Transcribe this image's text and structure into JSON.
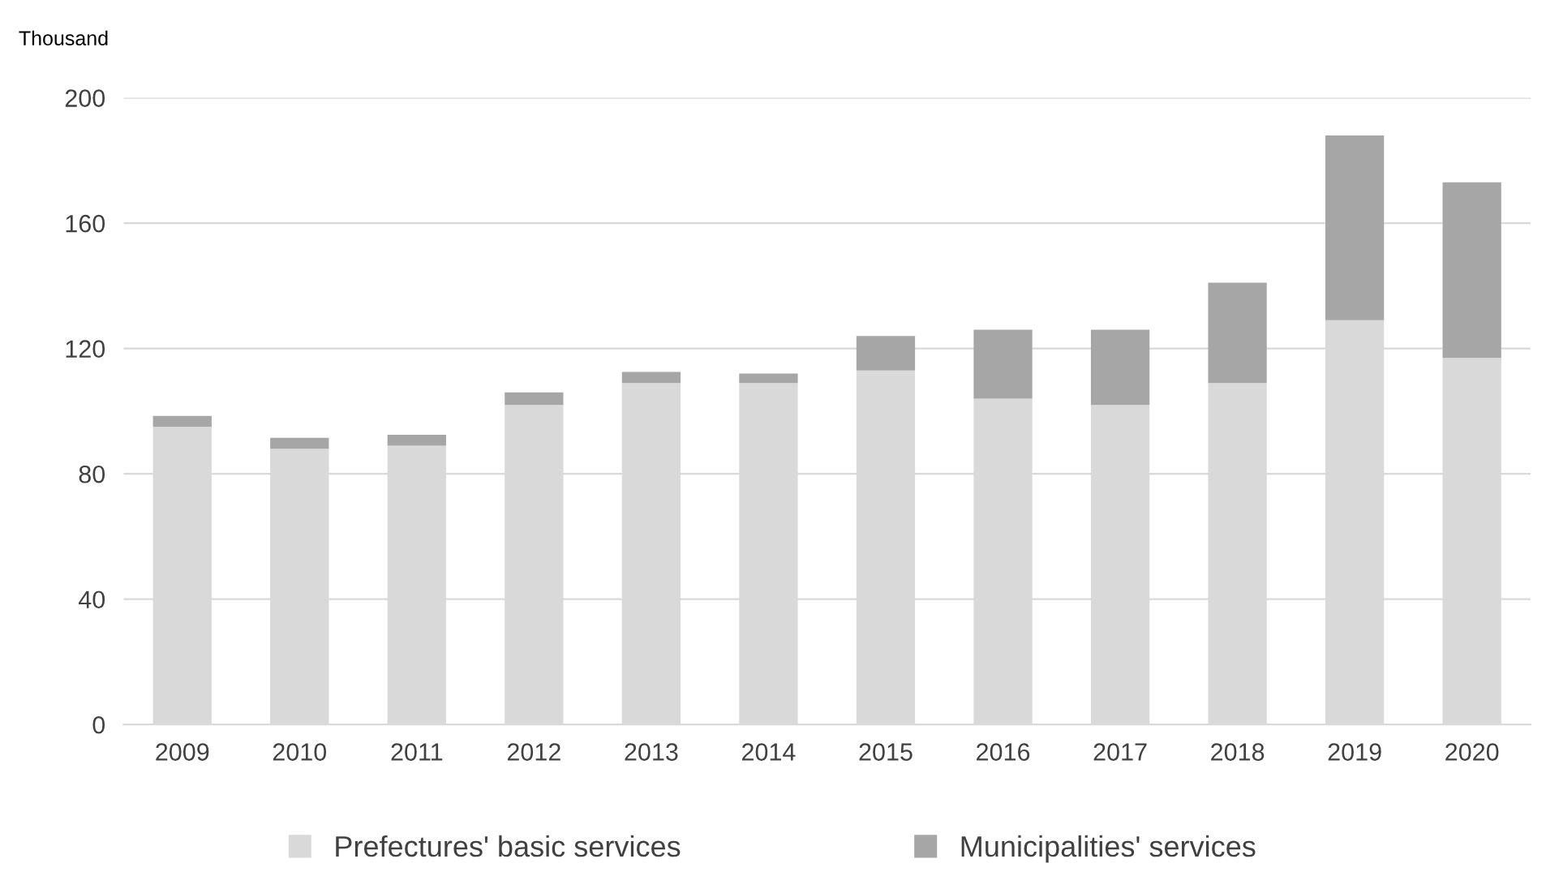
{
  "chart_data": {
    "type": "bar",
    "stacked": true,
    "ylabel": "Thousand",
    "categories": [
      "2009",
      "2010",
      "2011",
      "2012",
      "2013",
      "2014",
      "2015",
      "2016",
      "2017",
      "2018",
      "2019",
      "2020"
    ],
    "series": [
      {
        "name": "Prefectures' basic services",
        "color": "#d9d9d9",
        "values": [
          95,
          88,
          89,
          102,
          109,
          109,
          113,
          104,
          102,
          109,
          129,
          117
        ]
      },
      {
        "name": "Municipalities' services",
        "color": "#a6a6a6",
        "values": [
          3.5,
          3.5,
          3.5,
          4,
          3.5,
          3,
          11,
          22,
          24,
          32,
          59,
          56
        ]
      }
    ],
    "ylim": [
      0,
      200
    ],
    "yticks": [
      0,
      40,
      80,
      120,
      160,
      200
    ],
    "grid": "y",
    "legend": "bottom"
  }
}
